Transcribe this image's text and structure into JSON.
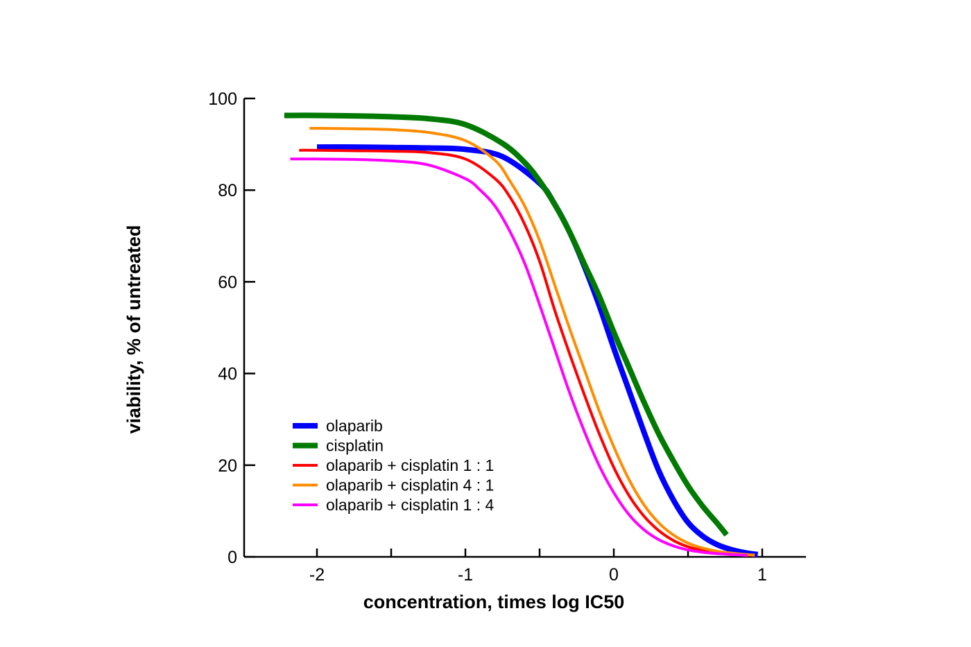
{
  "chart_data": {
    "type": "line",
    "title": "",
    "xlabel": "concentration, times log IC50",
    "ylabel": "viability,  %  of  untreated",
    "xlim": [
      -2.5,
      1.3
    ],
    "ylim": [
      0,
      100
    ],
    "x_ticks": [
      -2,
      -1,
      0,
      1
    ],
    "x_minor_ticks": [
      -1.5,
      -0.5,
      0.5
    ],
    "y_ticks": [
      0,
      20,
      40,
      60,
      80,
      100
    ],
    "grid": false,
    "legend_position": "bottom-left",
    "series": [
      {
        "name": "olaparib",
        "color": "#0000ff",
        "width": 8,
        "x": [
          -2.0,
          -1.75,
          -1.5,
          -1.25,
          -1.0,
          -0.75,
          -0.5,
          -0.4,
          -0.3,
          -0.2,
          -0.1,
          0.0,
          0.1,
          0.2,
          0.3,
          0.4,
          0.5,
          0.6,
          0.7,
          0.8,
          0.9,
          0.97
        ],
        "y": [
          89.4,
          89.4,
          89.3,
          89.2,
          88.9,
          87.3,
          81.5,
          77.0,
          71.0,
          63.5,
          55.0,
          45.5,
          36.5,
          27.5,
          19.0,
          12.5,
          7.5,
          4.5,
          2.6,
          1.5,
          0.8,
          0.5
        ]
      },
      {
        "name": "cisplatin",
        "color": "#007a00",
        "width": 8,
        "x": [
          -2.22,
          -2.0,
          -1.75,
          -1.5,
          -1.25,
          -1.0,
          -0.75,
          -0.6,
          -0.5,
          -0.4,
          -0.3,
          -0.2,
          -0.1,
          0.0,
          0.1,
          0.2,
          0.3,
          0.4,
          0.5,
          0.6,
          0.7,
          0.76
        ],
        "y": [
          96.3,
          96.3,
          96.2,
          96.0,
          95.6,
          94.3,
          90.2,
          86.0,
          82.0,
          77.0,
          71.0,
          64.0,
          57.0,
          49.0,
          41.5,
          34.0,
          27.0,
          21.0,
          15.5,
          11.0,
          7.2,
          4.8
        ]
      },
      {
        "name": "olaparib + cisplatin  1 : 1",
        "color": "#ff0000",
        "width": 4,
        "x": [
          -2.12,
          -2.0,
          -1.75,
          -1.5,
          -1.25,
          -1.0,
          -0.8,
          -0.7,
          -0.6,
          -0.5,
          -0.4,
          -0.3,
          -0.2,
          -0.1,
          0.0,
          0.1,
          0.2,
          0.3,
          0.4,
          0.5,
          0.6,
          0.7,
          0.8,
          0.9,
          0.95
        ],
        "y": [
          88.7,
          88.7,
          88.6,
          88.5,
          88.2,
          86.8,
          82.5,
          78.5,
          72.5,
          64.5,
          54.0,
          44.5,
          35.5,
          27.0,
          19.5,
          13.5,
          9.0,
          5.8,
          3.6,
          2.2,
          1.4,
          0.9,
          0.6,
          0.4,
          0.3
        ]
      },
      {
        "name": "olaparib + cisplatin  4 : 1",
        "color": "#ff8c00",
        "width": 4,
        "x": [
          -2.05,
          -2.0,
          -1.75,
          -1.5,
          -1.25,
          -1.0,
          -0.8,
          -0.7,
          -0.6,
          -0.5,
          -0.4,
          -0.3,
          -0.2,
          -0.1,
          0.0,
          0.1,
          0.2,
          0.3,
          0.4,
          0.5,
          0.6,
          0.7,
          0.8,
          0.9,
          0.95
        ],
        "y": [
          93.5,
          93.5,
          93.4,
          93.2,
          92.6,
          90.8,
          86.5,
          82.0,
          76.5,
          69.0,
          59.5,
          50.0,
          41.0,
          32.0,
          24.0,
          17.0,
          11.5,
          7.5,
          4.8,
          3.0,
          1.9,
          1.2,
          0.8,
          0.5,
          0.4
        ]
      },
      {
        "name": "olaparib + cisplatin  1 : 4",
        "color": "#ff00ff",
        "width": 4,
        "x": [
          -2.18,
          -2.0,
          -1.75,
          -1.5,
          -1.25,
          -1.0,
          -0.9,
          -0.8,
          -0.7,
          -0.6,
          -0.5,
          -0.4,
          -0.3,
          -0.2,
          -0.1,
          0.0,
          0.1,
          0.2,
          0.3,
          0.4,
          0.5,
          0.6,
          0.7,
          0.8,
          0.9
        ],
        "y": [
          86.8,
          86.8,
          86.7,
          86.4,
          85.5,
          82.5,
          80.0,
          76.5,
          71.0,
          64.0,
          55.0,
          45.5,
          36.0,
          27.5,
          20.0,
          14.0,
          9.3,
          6.0,
          3.8,
          2.4,
          1.5,
          1.0,
          0.7,
          0.5,
          0.3
        ]
      }
    ]
  }
}
